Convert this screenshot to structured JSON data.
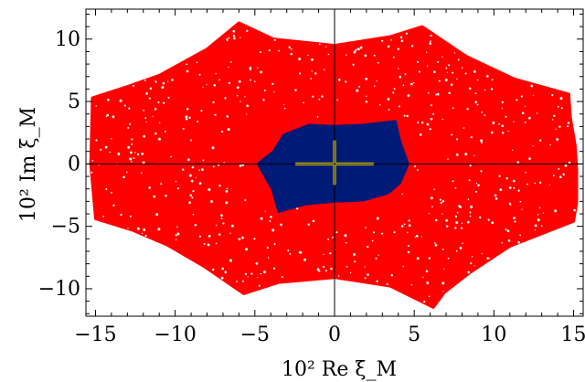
{
  "chart_data": {
    "type": "scatter",
    "xlabel": "10² Re ξ_M",
    "ylabel": "10² Im ξ_M",
    "xlim": [
      -15.6,
      15.6
    ],
    "ylim": [
      -12.2,
      12.4
    ],
    "x_ticks": [
      -15,
      -10,
      -5,
      0,
      5,
      10,
      15
    ],
    "y_ticks": [
      -10,
      -5,
      0,
      5,
      10
    ],
    "x_tick_labels": [
      "−15",
      "−10",
      "−5",
      "0",
      "5",
      "10",
      "15"
    ],
    "y_tick_labels": [
      "−10",
      "−5",
      "0",
      "5",
      "10"
    ],
    "grid": false,
    "legend": "none",
    "series": [
      {
        "color": "#ff0000",
        "boundary": [
          [
            14.8,
            3.7
          ],
          [
            15.1,
            1.5
          ],
          [
            15.2,
            -0.5
          ],
          [
            15.2,
            -3.1
          ],
          [
            15.0,
            -4.6
          ],
          [
            11.0,
            -6.6
          ],
          [
            8.5,
            -8.7
          ],
          [
            6.9,
            -10.3
          ],
          [
            6.2,
            -11.5
          ],
          [
            3.5,
            -9.8
          ],
          [
            0.0,
            -9.1
          ],
          [
            -3.5,
            -9.5
          ],
          [
            -5.7,
            -10.4
          ],
          [
            -8.2,
            -8.2
          ],
          [
            -10.5,
            -6.5
          ],
          [
            -12.7,
            -5.3
          ],
          [
            -15.0,
            -4.4
          ],
          [
            -15.3,
            0.0
          ],
          [
            -15.2,
            5.3
          ],
          [
            -13.0,
            6.2
          ],
          [
            -11.0,
            7.1
          ],
          [
            -8.0,
            9.2
          ],
          [
            -6.0,
            11.3
          ],
          [
            -3.8,
            10.0
          ],
          [
            0.0,
            9.5
          ],
          [
            3.5,
            10.2
          ],
          [
            5.5,
            11.0
          ],
          [
            8.3,
            8.6
          ],
          [
            11.3,
            6.8
          ],
          [
            14.7,
            5.6
          ]
        ]
      },
      {
        "color": "#001a78",
        "boundary": [
          [
            -4.8,
            0.0
          ],
          [
            -3.8,
            1.0
          ],
          [
            -3.2,
            2.3
          ],
          [
            -1.6,
            3.1
          ],
          [
            0.0,
            3.0
          ],
          [
            1.8,
            3.1
          ],
          [
            3.8,
            3.4
          ],
          [
            4.1,
            1.8
          ],
          [
            4.6,
            0.0
          ],
          [
            4.1,
            -1.5
          ],
          [
            3.4,
            -2.3
          ],
          [
            1.8,
            -2.9
          ],
          [
            0.0,
            -3.0
          ],
          [
            -1.8,
            -3.2
          ],
          [
            -3.5,
            -3.8
          ],
          [
            -3.9,
            -2.0
          ]
        ]
      },
      {
        "color": "#f0e000",
        "segments": [
          [
            [
              -2.4,
              0.0
            ],
            [
              2.4,
              0.0
            ]
          ],
          [
            [
              0.0,
              -1.6
            ],
            [
              0.0,
              1.8
            ]
          ]
        ]
      }
    ]
  }
}
